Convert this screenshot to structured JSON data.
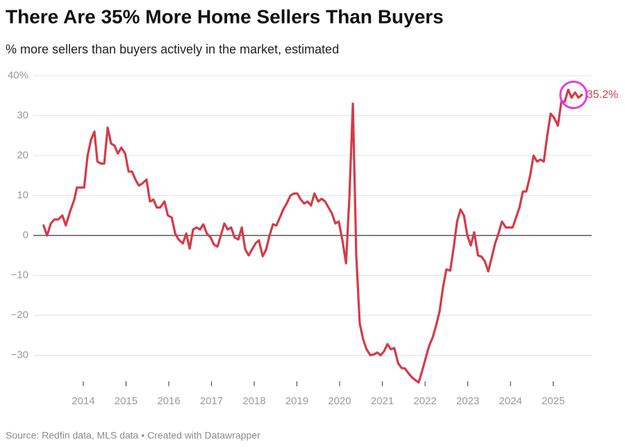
{
  "chart_data": {
    "type": "line",
    "title": "There Are 35% More Home Sellers Than Buyers",
    "subtitle": "% more sellers than buyers actively in the market, estimated",
    "source": "Source: Redfin data, MLS data • Created with Datawrapper",
    "color": "#d43a48",
    "grid": true,
    "xlim": [
      2012.83,
      2025.9
    ],
    "xticks": [
      2014,
      2015,
      2016,
      2017,
      2018,
      2019,
      2020,
      2021,
      2022,
      2023,
      2024,
      2025
    ],
    "ylim": [
      -37.5,
      40
    ],
    "yticks": [
      {
        "value": 40,
        "label": "40%"
      },
      30,
      20,
      10,
      0,
      {
        "value": -10,
        "label": "−10"
      },
      {
        "value": -20,
        "label": "−20"
      },
      {
        "value": -30,
        "label": "−30"
      }
    ],
    "x": [
      2013.07,
      2013.15,
      2013.24,
      2013.32,
      2013.41,
      2013.51,
      2013.59,
      2013.69,
      2013.79,
      2013.85,
      2013.95,
      2014.02,
      2014.1,
      2014.18,
      2014.26,
      2014.33,
      2014.41,
      2014.49,
      2014.57,
      2014.65,
      2014.73,
      2014.81,
      2014.89,
      2014.98,
      2015.06,
      2015.14,
      2015.22,
      2015.3,
      2015.38,
      2015.48,
      2015.56,
      2015.64,
      2015.72,
      2015.8,
      2015.9,
      2015.98,
      2016.07,
      2016.15,
      2016.23,
      2016.33,
      2016.41,
      2016.49,
      2016.57,
      2016.65,
      2016.73,
      2016.81,
      2016.89,
      2016.98,
      2017.06,
      2017.14,
      2017.22,
      2017.3,
      2017.38,
      2017.46,
      2017.54,
      2017.63,
      2017.71,
      2017.79,
      2017.87,
      2017.95,
      2018.03,
      2018.11,
      2018.2,
      2018.28,
      2018.36,
      2018.44,
      2018.52,
      2018.6,
      2018.68,
      2018.76,
      2018.85,
      2018.93,
      2019.01,
      2019.09,
      2019.17,
      2019.25,
      2019.33,
      2019.41,
      2019.5,
      2019.58,
      2019.66,
      2019.74,
      2019.82,
      2019.9,
      2019.98,
      2020.07,
      2020.15,
      2020.23,
      2020.31,
      2020.39,
      2020.47,
      2020.55,
      2020.63,
      2020.72,
      2020.8,
      2020.88,
      2020.96,
      2021.04,
      2021.12,
      2021.2,
      2021.28,
      2021.37,
      2021.45,
      2021.53,
      2021.61,
      2021.69,
      2021.77,
      2021.85,
      2021.93,
      2022.02,
      2022.1,
      2022.18,
      2022.26,
      2022.34,
      2022.42,
      2022.5,
      2022.59,
      2022.67,
      2022.75,
      2022.83,
      2022.91,
      2022.99,
      2023.07,
      2023.15,
      2023.24,
      2023.32,
      2023.4,
      2023.48,
      2023.56,
      2023.64,
      2023.72,
      2023.8,
      2023.89,
      2023.97,
      2024.05,
      2024.13,
      2024.21,
      2024.29,
      2024.37,
      2024.46,
      2024.54,
      2024.62,
      2024.7,
      2024.78,
      2024.86,
      2024.94,
      2025.02,
      2025.11,
      2025.19,
      2025.27,
      2025.35,
      2025.43,
      2025.51,
      2025.59,
      2025.67
    ],
    "values": [
      2.5,
      0,
      3,
      4,
      4,
      5,
      2.5,
      6,
      9,
      12,
      12,
      12,
      20,
      24,
      26,
      18.5,
      18,
      18,
      27,
      23,
      22.5,
      20.5,
      22,
      20.5,
      16,
      16,
      14,
      12.5,
      13,
      14,
      8.5,
      9,
      7,
      7,
      8.5,
      5,
      4.5,
      0.5,
      -1,
      -2,
      0.5,
      -3.3,
      1.5,
      2,
      1.5,
      2.8,
      0.5,
      -0.5,
      -2.3,
      -2.8,
      0,
      3,
      1.5,
      2,
      -0.5,
      -1,
      2,
      -3.5,
      -5,
      -3.5,
      -2,
      -1.2,
      -5.2,
      -3.5,
      0,
      2.8,
      2.5,
      4.5,
      6.5,
      8,
      10,
      10.5,
      10.5,
      9,
      8,
      8.5,
      7.5,
      10.5,
      8.5,
      9.2,
      8.5,
      7,
      5.5,
      3,
      3.5,
      -1.5,
      -7,
      10,
      33,
      -5,
      -22,
      -26,
      -28.5,
      -30,
      -29.8,
      -29.3,
      -30,
      -29,
      -27.2,
      -28.5,
      -28.2,
      -32,
      -33.2,
      -33.3,
      -34.5,
      -35.5,
      -36.2,
      -36.8,
      -34,
      -30.5,
      -27.5,
      -25.5,
      -22.5,
      -19,
      -13,
      -8.5,
      -8.8,
      -3,
      3.5,
      6.5,
      5,
      0,
      -2.5,
      0.8,
      -5,
      -5.3,
      -6.5,
      -9,
      -5.5,
      -2,
      0.5,
      3.5,
      2,
      2,
      2,
      4.5,
      7,
      11,
      11,
      15,
      20,
      18.5,
      19,
      18.5,
      25,
      30.5,
      29.5,
      27.5,
      33.5,
      33.5,
      36.5,
      34.5,
      35.8,
      34.5,
      35.2
    ],
    "value_labels": [
      null,
      null,
      null,
      null,
      null,
      null,
      null,
      null,
      null,
      null,
      null,
      null,
      null,
      null,
      null,
      null,
      null,
      null,
      null,
      null,
      null,
      null,
      null,
      null,
      null,
      null,
      null,
      null,
      null,
      null,
      null,
      null,
      null,
      null,
      null,
      null,
      null,
      null,
      null,
      null,
      null,
      null,
      null,
      null,
      null,
      null,
      null,
      null,
      null,
      null,
      null,
      null,
      null,
      null,
      null,
      null,
      null,
      null,
      null,
      null,
      null,
      null,
      null,
      null,
      null,
      null,
      null,
      null,
      null,
      null,
      null,
      null,
      null,
      null,
      null,
      null,
      null,
      null,
      null,
      null,
      null,
      null,
      null,
      null,
      null,
      null,
      null,
      null,
      null,
      null,
      null,
      null,
      null,
      null,
      null,
      null,
      null,
      null,
      null,
      null,
      null,
      null,
      null,
      null,
      null,
      null,
      null,
      null,
      null,
      null,
      null,
      null,
      null,
      null,
      null,
      null,
      null,
      null,
      null,
      null,
      null,
      null,
      null,
      null,
      null,
      null,
      null,
      null,
      null,
      null,
      null,
      null,
      null,
      null,
      null,
      null,
      null,
      null,
      null,
      null,
      null,
      null,
      null,
      null,
      null,
      null,
      null,
      null,
      null,
      null,
      null,
      null,
      null,
      null,
      "35.2%"
    ]
  }
}
